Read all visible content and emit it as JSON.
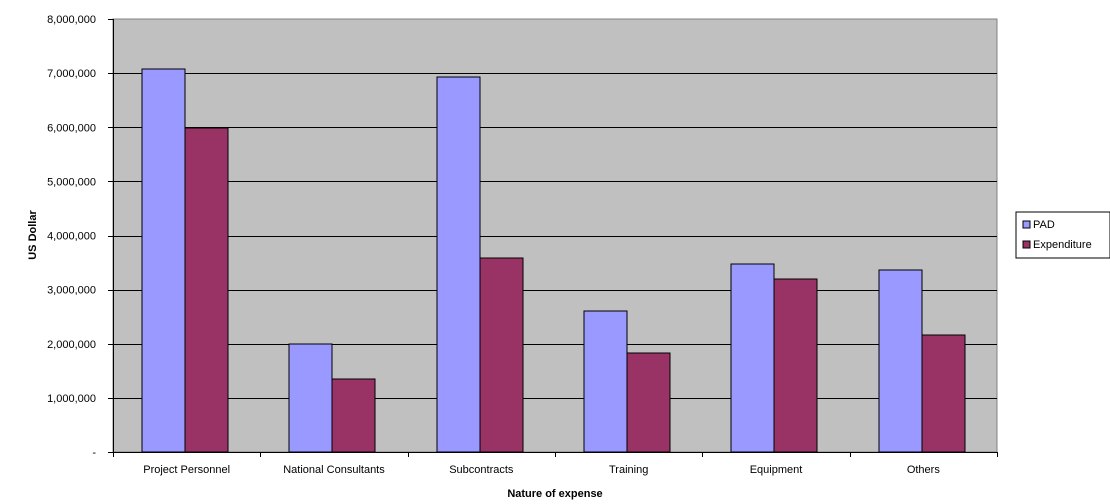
{
  "chart_data": {
    "type": "bar",
    "title": "",
    "xlabel": "Nature of expense",
    "ylabel": "US Dollar",
    "categories": [
      "Project Personnel",
      "National Consultants",
      "Subcontracts",
      "Training",
      "Equipment",
      "Others"
    ],
    "series": [
      {
        "name": "PAD",
        "values": [
          7070000,
          2000000,
          6920000,
          2600000,
          3480000,
          3370000
        ]
      },
      {
        "name": "Expenditure",
        "values": [
          5990000,
          1350000,
          3590000,
          1830000,
          3190000,
          2160000
        ]
      }
    ],
    "ylim": [
      0,
      8000000
    ],
    "yticks": [
      0,
      1000000,
      2000000,
      3000000,
      4000000,
      5000000,
      6000000,
      7000000,
      8000000
    ],
    "ytick_labels": [
      "-",
      "1,000,000",
      "2,000,000",
      "3,000,000",
      "4,000,000",
      "5,000,000",
      "6,000,000",
      "7,000,000",
      "8,000,000"
    ],
    "grid": true,
    "legend": "right",
    "colors": {
      "plot_background": "#c0c0c0",
      "series": [
        "#9999ff",
        "#993366"
      ],
      "gridline": "#000000"
    }
  }
}
